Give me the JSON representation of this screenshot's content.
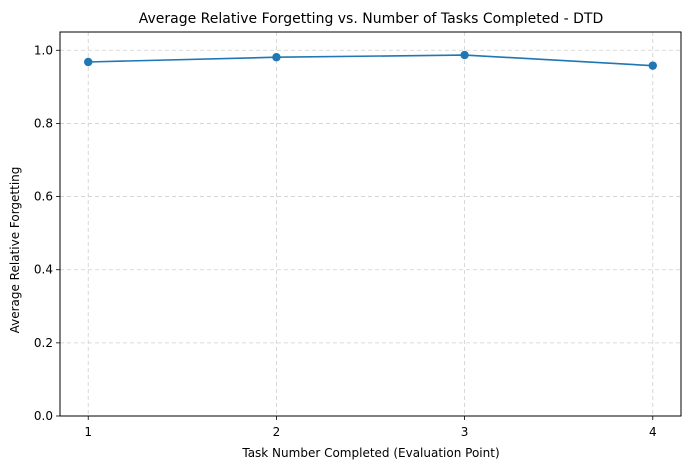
{
  "chart_data": {
    "type": "line",
    "title": "Average Relative Forgetting vs. Number of Tasks Completed - DTD",
    "xlabel": "Task Number Completed (Evaluation Point)",
    "ylabel": "Average Relative Forgetting",
    "x": [
      1,
      2,
      3,
      4
    ],
    "xticks": [
      "1",
      "2",
      "3",
      "4"
    ],
    "xlim": [
      0.85,
      4.15
    ],
    "ylim": [
      0.0,
      1.05
    ],
    "yticks": [
      "0.0",
      "0.2",
      "0.4",
      "0.6",
      "0.8",
      "1.0"
    ],
    "ytick_values": [
      0.0,
      0.2,
      0.4,
      0.6,
      0.8,
      1.0
    ],
    "grid": true,
    "series": [
      {
        "values": [
          0.968,
          0.981,
          0.987,
          0.958
        ],
        "color": "#1f77b4",
        "marker": "circle"
      }
    ]
  }
}
